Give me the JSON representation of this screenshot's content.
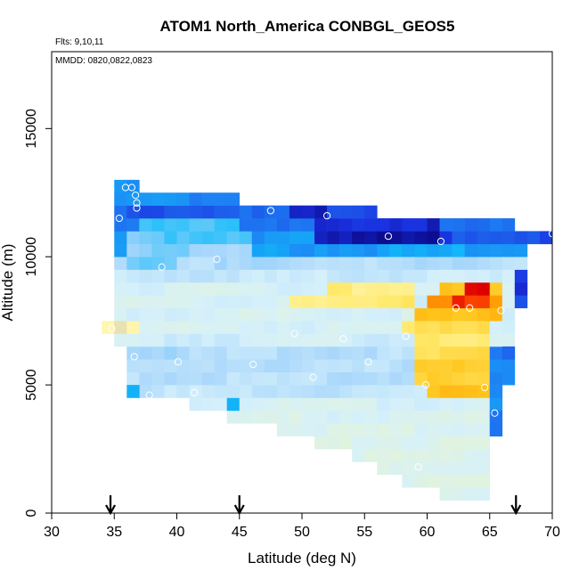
{
  "chart_data": {
    "type": "heatmap",
    "title": "ATOM1 North_America CONBGL_GEOS5",
    "annotations": [
      "Flts: 9,10,11",
      "MMDD: 0820,0822,0823"
    ],
    "xlabel": "Latitude (deg N)",
    "ylabel": "Altitude (m)",
    "xlim": [
      30,
      70
    ],
    "ylim": [
      0,
      18000
    ],
    "x_ticks": [
      30,
      35,
      40,
      45,
      50,
      55,
      60,
      65,
      70
    ],
    "y_ticks": [
      0,
      5000,
      10000,
      15000
    ],
    "cell_size": {
      "lat": 1,
      "alt": 500
    },
    "color_scale": {
      "stops": [
        "#e3f4d8",
        "#d5f0fb",
        "#a7d6fb",
        "#11bbf9",
        "#1e7ff3",
        "#1a2fe0",
        "#0b0b8c",
        "#fff7b6",
        "#ffe96a",
        "#ffc51b",
        "#ff9d05",
        "#ff4c00",
        "#dd0000"
      ]
    },
    "bands": [
      {
        "alt": 750,
        "lat": [
          61,
          65
        ],
        "level": 0.7
      },
      {
        "alt": 1250,
        "lat": [
          58,
          65
        ],
        "level": 0.7
      },
      {
        "alt": 1750,
        "lat": [
          56,
          65
        ],
        "level": 0.7
      },
      {
        "alt": 2250,
        "lat": [
          54,
          65
        ],
        "level": 0.7
      },
      {
        "alt": 2750,
        "lat": [
          51,
          65
        ],
        "level": 0.7
      },
      {
        "alt": 3250,
        "lat": [
          48,
          66
        ],
        "level": 0.8
      },
      {
        "alt": 3750,
        "lat": [
          44,
          66
        ],
        "level": 0.9
      },
      {
        "alt": 4250,
        "lat": [
          41,
          66
        ],
        "level": 1.0
      },
      {
        "alt": 4750,
        "lat": [
          37,
          66
        ],
        "level": 1.6
      },
      {
        "alt": 5250,
        "lat": [
          36,
          66
        ],
        "level": 1.8
      },
      {
        "alt": 5750,
        "lat": [
          36,
          66
        ],
        "level": 1.8
      },
      {
        "alt": 6250,
        "lat": [
          36,
          66
        ],
        "level": 1.8
      },
      {
        "alt": 6750,
        "lat": [
          35,
          67
        ],
        "level": 1.2
      },
      {
        "alt": 7250,
        "lat": [
          34,
          67
        ],
        "level": 1.0
      },
      {
        "alt": 7750,
        "lat": [
          35,
          67
        ],
        "level": 1.0
      },
      {
        "alt": 8250,
        "lat": [
          35,
          68
        ],
        "level": 1.0
      },
      {
        "alt": 8750,
        "lat": [
          35,
          68
        ],
        "level": 1.0
      },
      {
        "alt": 9250,
        "lat": [
          35,
          68
        ],
        "level": 1.5
      },
      {
        "alt": 9750,
        "lat": [
          35,
          68
        ],
        "level": 1.9
      },
      {
        "alt": 10250,
        "lat": [
          35,
          68
        ],
        "level": 3.6
      },
      {
        "alt": 10750,
        "lat": [
          35,
          70
        ],
        "level": 3.8
      },
      {
        "alt": 11250,
        "lat": [
          35,
          67
        ],
        "level": 4.2
      },
      {
        "alt": 11750,
        "lat": [
          35,
          56
        ],
        "level": 4.6
      },
      {
        "alt": 12250,
        "lat": [
          35,
          45
        ],
        "level": 4.0
      },
      {
        "alt": 12750,
        "lat": [
          35,
          37
        ],
        "level": 3.6
      }
    ],
    "hotspots": [
      {
        "alt": 8750,
        "lat": [
          61,
          66
        ],
        "level": 9.0
      },
      {
        "alt": 8250,
        "lat": [
          60,
          66
        ],
        "level": 10.2
      },
      {
        "alt": 7750,
        "lat": [
          59,
          66
        ],
        "level": 9.4
      },
      {
        "alt": 7250,
        "lat": [
          58,
          65
        ],
        "level": 8.3
      },
      {
        "alt": 6750,
        "lat": [
          59,
          65
        ],
        "level": 8.2
      },
      {
        "alt": 6250,
        "lat": [
          59,
          65
        ],
        "level": 8.6
      },
      {
        "alt": 5750,
        "lat": [
          59,
          65
        ],
        "level": 8.8
      },
      {
        "alt": 5250,
        "lat": [
          59,
          65
        ],
        "level": 9.0
      },
      {
        "alt": 4750,
        "lat": [
          60,
          65
        ],
        "level": 9.2
      },
      {
        "alt": 8750,
        "lat": [
          52,
          59
        ],
        "level": 7.9
      },
      {
        "alt": 8250,
        "lat": [
          49,
          59
        ],
        "level": 8.0
      },
      {
        "alt": 8250,
        "lat": [
          62,
          65
        ],
        "level": 11.5
      },
      {
        "alt": 8750,
        "lat": [
          63,
          65
        ],
        "level": 12.0
      },
      {
        "alt": 10750,
        "lat": [
          51,
          61
        ],
        "level": 5.8
      },
      {
        "alt": 11250,
        "lat": [
          51,
          61
        ],
        "level": 5.4
      },
      {
        "alt": 11750,
        "lat": [
          49,
          52
        ],
        "level": 5.6
      },
      {
        "alt": 10750,
        "lat": [
          61,
          70
        ],
        "level": 4.8
      },
      {
        "alt": 11250,
        "lat": [
          37,
          45
        ],
        "level": 3.0
      },
      {
        "alt": 10750,
        "lat": [
          36,
          46
        ],
        "level": 2.6
      },
      {
        "alt": 10250,
        "lat": [
          36,
          46
        ],
        "level": 2.2
      },
      {
        "alt": 9750,
        "lat": [
          36,
          40
        ],
        "level": 2.8
      },
      {
        "alt": 3250,
        "lat": [
          65,
          66
        ],
        "level": 4.2
      },
      {
        "alt": 3750,
        "lat": [
          65,
          66
        ],
        "level": 4.2
      },
      {
        "alt": 4250,
        "lat": [
          65,
          66
        ],
        "level": 4.0
      },
      {
        "alt": 4750,
        "lat": [
          65,
          66
        ],
        "level": 4.0
      },
      {
        "alt": 5250,
        "lat": [
          65,
          67
        ],
        "level": 4.2
      },
      {
        "alt": 5750,
        "lat": [
          65,
          67
        ],
        "level": 4.2
      },
      {
        "alt": 6250,
        "lat": [
          65,
          67
        ],
        "level": 4.2
      },
      {
        "alt": 8250,
        "lat": [
          67,
          68
        ],
        "level": 5.0
      },
      {
        "alt": 8750,
        "lat": [
          67,
          68
        ],
        "level": 5.0
      },
      {
        "alt": 9250,
        "lat": [
          67,
          68
        ],
        "level": 5.0
      },
      {
        "alt": 4750,
        "lat": [
          36,
          37
        ],
        "level": 3.0
      },
      {
        "alt": 4250,
        "lat": [
          44,
          45
        ],
        "level": 3.0
      },
      {
        "alt": 7250,
        "lat": [
          34,
          37
        ],
        "level": 7.0
      },
      {
        "alt": 6250,
        "lat": [
          36,
          44
        ],
        "level": 2.0
      },
      {
        "alt": 5750,
        "lat": [
          36,
          44
        ],
        "level": 2.0
      }
    ],
    "samples": [
      {
        "lat": 35.4,
        "alt": 11500
      },
      {
        "lat": 35.9,
        "alt": 12700
      },
      {
        "lat": 36.4,
        "alt": 12700
      },
      {
        "lat": 36.7,
        "alt": 12400
      },
      {
        "lat": 36.8,
        "alt": 12100
      },
      {
        "lat": 36.8,
        "alt": 11900
      },
      {
        "lat": 34.8,
        "alt": 7200
      },
      {
        "lat": 36.6,
        "alt": 6100
      },
      {
        "lat": 37.8,
        "alt": 4600
      },
      {
        "lat": 38.8,
        "alt": 9600
      },
      {
        "lat": 40.1,
        "alt": 5900
      },
      {
        "lat": 41.4,
        "alt": 4700
      },
      {
        "lat": 43.2,
        "alt": 9900
      },
      {
        "lat": 46.1,
        "alt": 5800
      },
      {
        "lat": 47.5,
        "alt": 11800
      },
      {
        "lat": 49.4,
        "alt": 7000
      },
      {
        "lat": 50.9,
        "alt": 5300
      },
      {
        "lat": 52.0,
        "alt": 11600
      },
      {
        "lat": 53.3,
        "alt": 6800
      },
      {
        "lat": 55.3,
        "alt": 5900
      },
      {
        "lat": 56.9,
        "alt": 10800
      },
      {
        "lat": 58.3,
        "alt": 6900
      },
      {
        "lat": 59.3,
        "alt": 1800
      },
      {
        "lat": 59.9,
        "alt": 5000
      },
      {
        "lat": 61.1,
        "alt": 10600
      },
      {
        "lat": 62.3,
        "alt": 8000
      },
      {
        "lat": 63.4,
        "alt": 8000
      },
      {
        "lat": 64.6,
        "alt": 4900
      },
      {
        "lat": 65.4,
        "alt": 3900
      },
      {
        "lat": 65.9,
        "alt": 7900
      },
      {
        "lat": 70.0,
        "alt": 10900
      }
    ],
    "arrows": [
      34.7,
      45.0,
      67.1
    ]
  }
}
